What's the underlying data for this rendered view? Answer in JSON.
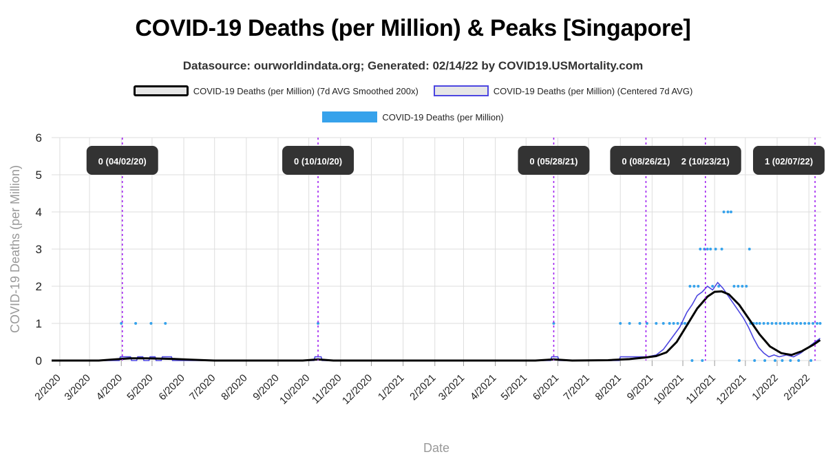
{
  "title": "COVID-19 Deaths (per Million) & Peaks [Singapore]",
  "subtitle": "Datasource: ourworldindata.org; Generated: 02/14/22 by COVID19.USMortality.com",
  "colors": {
    "smoothed": "#000000",
    "centered_avg": "#4b45e0",
    "raw": "#36a2eb",
    "peak_line": "#a020f0",
    "peak_label_bg": "#333333",
    "grid": "#dddddd"
  },
  "legend": [
    {
      "label": "COVID-19 Deaths (per Million) (7d AVG Smoothed 200x)",
      "style": "smoothed"
    },
    {
      "label": "COVID-19 Deaths (per Million) (Centered 7d AVG)",
      "style": "centered_avg"
    },
    {
      "label": "COVID-19 Deaths (per Million)",
      "style": "raw"
    }
  ],
  "chart_data": {
    "type": "line",
    "xlabel": "Date",
    "ylabel": "COVID-19 Deaths (per Million)",
    "ylim": [
      0,
      6
    ],
    "yticks": [
      "0",
      "1",
      "2",
      "3",
      "4",
      "5",
      "6"
    ],
    "grid": true,
    "legend_position": "top",
    "x_range": [
      "2020-01-24",
      "2022-02-13"
    ],
    "x_tick_labels": [
      {
        "date": "2020-02-01",
        "label": "2/2020"
      },
      {
        "date": "2020-03-01",
        "label": "3/2020"
      },
      {
        "date": "2020-04-01",
        "label": "4/2020"
      },
      {
        "date": "2020-05-01",
        "label": "5/2020"
      },
      {
        "date": "2020-06-01",
        "label": "6/2020"
      },
      {
        "date": "2020-07-01",
        "label": "7/2020"
      },
      {
        "date": "2020-08-01",
        "label": "8/2020"
      },
      {
        "date": "2020-09-01",
        "label": "9/2020"
      },
      {
        "date": "2020-10-01",
        "label": "10/2020"
      },
      {
        "date": "2020-11-01",
        "label": "11/2020"
      },
      {
        "date": "2020-12-01",
        "label": "12/2020"
      },
      {
        "date": "2021-01-01",
        "label": "1/2021"
      },
      {
        "date": "2021-02-01",
        "label": "2/2021"
      },
      {
        "date": "2021-03-01",
        "label": "3/2021"
      },
      {
        "date": "2021-04-01",
        "label": "4/2021"
      },
      {
        "date": "2021-05-01",
        "label": "5/2021"
      },
      {
        "date": "2021-06-01",
        "label": "6/2021"
      },
      {
        "date": "2021-07-01",
        "label": "7/2021"
      },
      {
        "date": "2021-08-01",
        "label": "8/2021"
      },
      {
        "date": "2021-09-01",
        "label": "9/2021"
      },
      {
        "date": "2021-10-01",
        "label": "10/2021"
      },
      {
        "date": "2021-11-01",
        "label": "11/2021"
      },
      {
        "date": "2021-12-01",
        "label": "12/2021"
      },
      {
        "date": "2022-01-01",
        "label": "1/2022"
      },
      {
        "date": "2022-02-01",
        "label": "2/2022"
      }
    ],
    "peaks": [
      {
        "date": "2020-04-02",
        "label": "0 (04/02/20)"
      },
      {
        "date": "2020-10-10",
        "label": "0 (10/10/20)"
      },
      {
        "date": "2021-05-28",
        "label": "0 (05/28/21)"
      },
      {
        "date": "2021-08-26",
        "label": "0 (08/26/21)"
      },
      {
        "date": "2021-10-23",
        "label": "2 (10/23/21)"
      },
      {
        "date": "2022-02-07",
        "label": "1 (02/07/22)"
      }
    ],
    "series": [
      {
        "name": "COVID-19 Deaths (per Million) (7d AVG Smoothed 200x)",
        "style": "smoothed",
        "points": [
          [
            "2020-01-24",
            0
          ],
          [
            "2020-03-10",
            0.0
          ],
          [
            "2020-03-25",
            0.03
          ],
          [
            "2020-04-10",
            0.06
          ],
          [
            "2020-04-25",
            0.06
          ],
          [
            "2020-05-10",
            0.05
          ],
          [
            "2020-05-25",
            0.04
          ],
          [
            "2020-06-10",
            0.02
          ],
          [
            "2020-07-01",
            0.0
          ],
          [
            "2020-09-25",
            0.0
          ],
          [
            "2020-10-10",
            0.03
          ],
          [
            "2020-10-25",
            0.0
          ],
          [
            "2021-05-10",
            0.0
          ],
          [
            "2021-05-28",
            0.03
          ],
          [
            "2021-06-15",
            0.0
          ],
          [
            "2021-07-20",
            0.01
          ],
          [
            "2021-08-10",
            0.04
          ],
          [
            "2021-08-25",
            0.08
          ],
          [
            "2021-09-05",
            0.12
          ],
          [
            "2021-09-15",
            0.22
          ],
          [
            "2021-09-25",
            0.5
          ],
          [
            "2021-10-05",
            0.95
          ],
          [
            "2021-10-15",
            1.4
          ],
          [
            "2021-10-25",
            1.72
          ],
          [
            "2021-11-01",
            1.85
          ],
          [
            "2021-11-08",
            1.86
          ],
          [
            "2021-11-15",
            1.78
          ],
          [
            "2021-11-25",
            1.5
          ],
          [
            "2021-12-05",
            1.1
          ],
          [
            "2021-12-15",
            0.7
          ],
          [
            "2021-12-25",
            0.38
          ],
          [
            "2022-01-05",
            0.2
          ],
          [
            "2022-01-15",
            0.15
          ],
          [
            "2022-01-25",
            0.25
          ],
          [
            "2022-02-05",
            0.42
          ],
          [
            "2022-02-12",
            0.55
          ]
        ]
      },
      {
        "name": "COVID-19 Deaths (per Million) (Centered 7d AVG)",
        "style": "centered_avg",
        "points": [
          [
            "2020-01-24",
            0
          ],
          [
            "2020-03-30",
            0
          ],
          [
            "2020-03-31",
            0.1
          ],
          [
            "2020-04-10",
            0.1
          ],
          [
            "2020-04-11",
            0
          ],
          [
            "2020-04-16",
            0
          ],
          [
            "2020-04-17",
            0.1
          ],
          [
            "2020-04-22",
            0.1
          ],
          [
            "2020-04-23",
            0
          ],
          [
            "2020-04-28",
            0
          ],
          [
            "2020-04-29",
            0.1
          ],
          [
            "2020-05-04",
            0.1
          ],
          [
            "2020-05-05",
            0
          ],
          [
            "2020-05-10",
            0
          ],
          [
            "2020-05-11",
            0.1
          ],
          [
            "2020-05-20",
            0.1
          ],
          [
            "2020-05-21",
            0
          ],
          [
            "2020-10-06",
            0
          ],
          [
            "2020-10-07",
            0.1
          ],
          [
            "2020-10-13",
            0.1
          ],
          [
            "2020-10-14",
            0
          ],
          [
            "2021-05-25",
            0
          ],
          [
            "2021-05-26",
            0.1
          ],
          [
            "2021-06-01",
            0.1
          ],
          [
            "2021-06-02",
            0
          ],
          [
            "2021-07-31",
            0
          ],
          [
            "2021-08-01",
            0.1
          ],
          [
            "2021-08-20",
            0.1
          ],
          [
            "2021-08-27",
            0.1
          ],
          [
            "2021-09-05",
            0.15
          ],
          [
            "2021-09-12",
            0.3
          ],
          [
            "2021-09-20",
            0.6
          ],
          [
            "2021-09-28",
            0.9
          ],
          [
            "2021-10-05",
            1.3
          ],
          [
            "2021-10-10",
            1.5
          ],
          [
            "2021-10-15",
            1.75
          ],
          [
            "2021-10-20",
            1.85
          ],
          [
            "2021-10-25",
            2.0
          ],
          [
            "2021-10-30",
            1.9
          ],
          [
            "2021-11-04",
            2.1
          ],
          [
            "2021-11-09",
            1.95
          ],
          [
            "2021-11-14",
            1.75
          ],
          [
            "2021-11-19",
            1.55
          ],
          [
            "2021-11-24",
            1.35
          ],
          [
            "2021-11-29",
            1.15
          ],
          [
            "2021-12-04",
            0.9
          ],
          [
            "2021-12-09",
            0.6
          ],
          [
            "2021-12-14",
            0.35
          ],
          [
            "2021-12-19",
            0.2
          ],
          [
            "2021-12-24",
            0.1
          ],
          [
            "2021-12-29",
            0.15
          ],
          [
            "2022-01-03",
            0.1
          ],
          [
            "2022-01-10",
            0.15
          ],
          [
            "2022-01-17",
            0.1
          ],
          [
            "2022-01-24",
            0.2
          ],
          [
            "2022-01-31",
            0.35
          ],
          [
            "2022-02-07",
            0.5
          ],
          [
            "2022-02-12",
            0.6
          ]
        ]
      },
      {
        "name": "COVID-19 Deaths (per Million)",
        "style": "raw",
        "points": [
          [
            "2020-04-01",
            1
          ],
          [
            "2020-04-15",
            1
          ],
          [
            "2020-04-30",
            1
          ],
          [
            "2020-05-14",
            1
          ],
          [
            "2020-10-10",
            1
          ],
          [
            "2021-05-28",
            1
          ],
          [
            "2021-08-01",
            1
          ],
          [
            "2021-08-10",
            1
          ],
          [
            "2021-08-20",
            1
          ],
          [
            "2021-08-27",
            1
          ],
          [
            "2021-09-05",
            1
          ],
          [
            "2021-09-12",
            1
          ],
          [
            "2021-09-18",
            1
          ],
          [
            "2021-09-22",
            1
          ],
          [
            "2021-09-26",
            1
          ],
          [
            "2021-09-30",
            1
          ],
          [
            "2021-10-03",
            1
          ],
          [
            "2021-10-06",
            1
          ],
          [
            "2021-10-08",
            2
          ],
          [
            "2021-10-12",
            2
          ],
          [
            "2021-10-16",
            2
          ],
          [
            "2021-10-18",
            3
          ],
          [
            "2021-10-22",
            3
          ],
          [
            "2021-10-25",
            3
          ],
          [
            "2021-10-28",
            3
          ],
          [
            "2021-10-30",
            2
          ],
          [
            "2021-11-02",
            3
          ],
          [
            "2021-11-05",
            2
          ],
          [
            "2021-11-08",
            3
          ],
          [
            "2021-11-10",
            4
          ],
          [
            "2021-11-14",
            4
          ],
          [
            "2021-11-17",
            4
          ],
          [
            "2021-11-20",
            2
          ],
          [
            "2021-11-24",
            2
          ],
          [
            "2021-11-28",
            2
          ],
          [
            "2021-12-02",
            2
          ],
          [
            "2021-12-05",
            3
          ],
          [
            "2021-12-06",
            1
          ],
          [
            "2021-12-09",
            1
          ],
          [
            "2021-12-12",
            1
          ],
          [
            "2021-12-15",
            1
          ],
          [
            "2021-12-19",
            1
          ],
          [
            "2021-12-23",
            1
          ],
          [
            "2021-12-27",
            1
          ],
          [
            "2021-12-31",
            1
          ],
          [
            "2022-01-04",
            1
          ],
          [
            "2022-01-08",
            1
          ],
          [
            "2022-01-12",
            1
          ],
          [
            "2022-01-16",
            1
          ],
          [
            "2022-01-20",
            1
          ],
          [
            "2022-01-24",
            1
          ],
          [
            "2022-01-28",
            1
          ],
          [
            "2022-02-01",
            1
          ],
          [
            "2022-02-05",
            1
          ],
          [
            "2022-02-09",
            1
          ],
          [
            "2022-02-12",
            1
          ],
          [
            "2021-10-10",
            0
          ],
          [
            "2021-10-20",
            0
          ],
          [
            "2021-11-25",
            0
          ],
          [
            "2021-12-10",
            0
          ],
          [
            "2021-12-20",
            0
          ],
          [
            "2021-12-30",
            0
          ],
          [
            "2022-01-06",
            0
          ],
          [
            "2022-01-14",
            0
          ],
          [
            "2022-01-22",
            0
          ],
          [
            "2022-02-03",
            0
          ]
        ]
      }
    ]
  }
}
